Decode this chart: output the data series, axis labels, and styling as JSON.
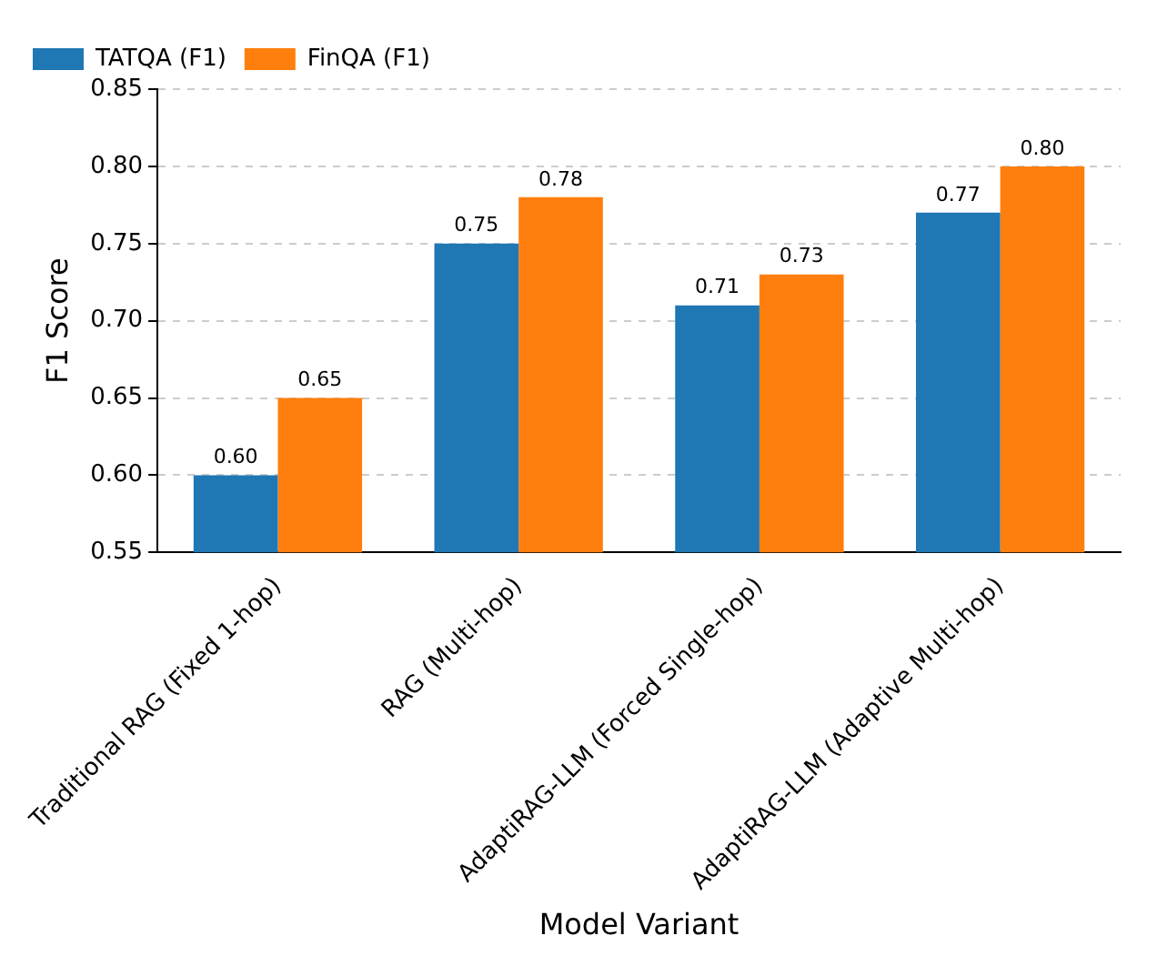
{
  "chart_data": {
    "type": "bar",
    "xlabel": "Model Variant",
    "ylabel": "F1 Score",
    "categories": [
      "Traditional RAG (Fixed 1-hop)",
      "RAG (Multi-hop)",
      "AdaptiRAG-LLM (Forced Single-hop)",
      "AdaptiRAG-LLM (Adaptive Multi-hop)"
    ],
    "series": [
      {
        "name": "TATQA (F1)",
        "color": "#1f77b4",
        "values": [
          0.6,
          0.75,
          0.71,
          0.77
        ],
        "value_labels": [
          "0.60",
          "0.75",
          "0.71",
          "0.77"
        ]
      },
      {
        "name": "FinQA (F1)",
        "color": "#ff7f0e",
        "values": [
          0.65,
          0.78,
          0.73,
          0.8
        ],
        "value_labels": [
          "0.65",
          "0.78",
          "0.73",
          "0.80"
        ]
      }
    ],
    "ylim": [
      0.55,
      0.85
    ],
    "yticks": [
      0.55,
      {
        "value": 0.6,
        "label": "0.60"
      },
      0.65,
      {
        "value": 0.7,
        "label": "0.70"
      },
      0.75,
      {
        "value": 0.8,
        "label": "0.80"
      },
      0.85
    ],
    "grid": "y",
    "legend": "top left"
  }
}
